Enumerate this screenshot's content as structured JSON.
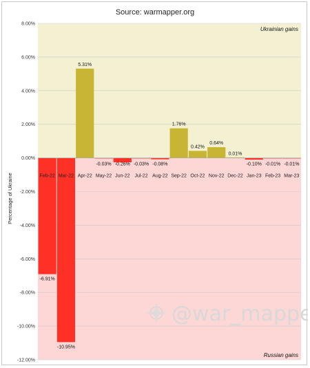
{
  "chart_data": {
    "type": "bar",
    "title": "Source: warmapper.org",
    "ylabel": "Percentage of Ukraine",
    "xlabel": "",
    "ylim": [
      -12,
      8
    ],
    "yticks": [
      "8.00%",
      "6.00%",
      "4.00%",
      "2.00%",
      "0.00%",
      "-2.00%",
      "-4.00%",
      "-6.00%",
      "-8.00%",
      "-10.00%",
      "-12.00%"
    ],
    "categories": [
      "Feb-22",
      "Mar-22",
      "Apr-22",
      "May-22",
      "Jun-22",
      "Jul-22",
      "Aug-22",
      "Sep-22",
      "Oct-22",
      "Nov-22",
      "Dec-22",
      "Jan-23",
      "Feb-23",
      "Mar-23"
    ],
    "values": [
      -6.91,
      -10.95,
      5.31,
      -0.03,
      -0.26,
      -0.03,
      -0.08,
      1.76,
      0.42,
      0.64,
      0.01,
      -0.1,
      -0.01,
      -0.01
    ],
    "data_labels": [
      "-6.91%",
      "-10.95%",
      "5.31%",
      "-0.03%",
      "-0.26%",
      "-0.03%",
      "-0.08%",
      "1.76%",
      "0.42%",
      "0.64%",
      "0.01%",
      "-0.10%",
      "-0.01%",
      "-0.01%"
    ],
    "grid": true,
    "annotations": {
      "top_region": "Ukrainian gains",
      "bottom_region": "Russian gains",
      "watermark": "@war_mapper"
    },
    "colors": {
      "gain": "#c9b534",
      "loss": "#ff3026",
      "gain_region": "#f4f1d2",
      "loss_region": "#fdd6d6",
      "grid": "#c9c9c9"
    }
  }
}
